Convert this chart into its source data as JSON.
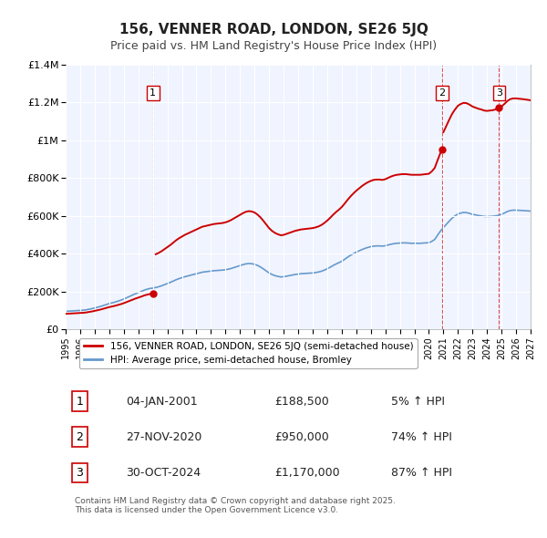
{
  "title": "156, VENNER ROAD, LONDON, SE26 5JQ",
  "subtitle": "Price paid vs. HM Land Registry's House Price Index (HPI)",
  "title_fontsize": 11,
  "subtitle_fontsize": 9,
  "background_color": "#ffffff",
  "plot_background_color": "#f0f4ff",
  "grid_color": "#ffffff",
  "xlim": [
    1995,
    2027
  ],
  "ylim": [
    0,
    1400000
  ],
  "yticks": [
    0,
    200000,
    400000,
    600000,
    800000,
    1000000,
    1200000,
    1400000
  ],
  "ytick_labels": [
    "£0",
    "£200K",
    "£400K",
    "£600K",
    "£800K",
    "£1M",
    "£1.2M",
    "£1.4M"
  ],
  "xticks": [
    1995,
    1996,
    1997,
    1998,
    1999,
    2000,
    2001,
    2002,
    2003,
    2004,
    2005,
    2006,
    2007,
    2008,
    2009,
    2010,
    2011,
    2012,
    2013,
    2014,
    2015,
    2016,
    2017,
    2018,
    2019,
    2020,
    2021,
    2022,
    2023,
    2024,
    2025,
    2026,
    2027
  ],
  "red_line_color": "#cc0000",
  "blue_line_color": "#6699cc",
  "marker_color": "#cc0000",
  "sale_dates": [
    2001.01,
    2020.9,
    2024.83
  ],
  "sale_prices": [
    188500,
    950000,
    1170000
  ],
  "sale_labels": [
    "1",
    "2",
    "3"
  ],
  "vline_dates": [
    2001.01,
    2020.9,
    2024.83
  ],
  "legend_label_red": "156, VENNER ROAD, LONDON, SE26 5JQ (semi-detached house)",
  "legend_label_blue": "HPI: Average price, semi-detached house, Bromley",
  "table_rows": [
    {
      "num": "1",
      "date": "04-JAN-2001",
      "price": "£188,500",
      "pct": "5% ↑ HPI"
    },
    {
      "num": "2",
      "date": "27-NOV-2020",
      "price": "£950,000",
      "pct": "74% ↑ HPI"
    },
    {
      "num": "3",
      "date": "30-OCT-2024",
      "price": "£1,170,000",
      "pct": "87% ↑ HPI"
    }
  ],
  "footnote": "Contains HM Land Registry data © Crown copyright and database right 2025.\nThis data is licensed under the Open Government Licence v3.0.",
  "hpi_years": [
    1995.0,
    1995.1,
    1995.2,
    1995.3,
    1995.4,
    1995.5,
    1995.6,
    1995.7,
    1995.8,
    1995.9,
    1996.0,
    1996.2,
    1996.4,
    1996.6,
    1996.8,
    1997.0,
    1997.2,
    1997.4,
    1997.6,
    1997.8,
    1998.0,
    1998.2,
    1998.4,
    1998.6,
    1998.8,
    1999.0,
    1999.2,
    1999.4,
    1999.6,
    1999.8,
    2000.0,
    2000.2,
    2000.4,
    2000.6,
    2000.8,
    2001.0,
    2001.2,
    2001.4,
    2001.6,
    2001.8,
    2002.0,
    2002.2,
    2002.4,
    2002.6,
    2002.8,
    2003.0,
    2003.2,
    2003.4,
    2003.6,
    2003.8,
    2004.0,
    2004.2,
    2004.4,
    2004.6,
    2004.8,
    2005.0,
    2005.2,
    2005.4,
    2005.6,
    2005.8,
    2006.0,
    2006.2,
    2006.4,
    2006.6,
    2006.8,
    2007.0,
    2007.2,
    2007.4,
    2007.6,
    2007.8,
    2008.0,
    2008.2,
    2008.4,
    2008.6,
    2008.8,
    2009.0,
    2009.2,
    2009.4,
    2009.6,
    2009.8,
    2010.0,
    2010.2,
    2010.4,
    2010.6,
    2010.8,
    2011.0,
    2011.2,
    2011.4,
    2011.6,
    2011.8,
    2012.0,
    2012.2,
    2012.4,
    2012.6,
    2012.8,
    2013.0,
    2013.2,
    2013.4,
    2013.6,
    2013.8,
    2014.0,
    2014.2,
    2014.4,
    2014.6,
    2014.8,
    2015.0,
    2015.2,
    2015.4,
    2015.6,
    2015.8,
    2016.0,
    2016.2,
    2016.4,
    2016.6,
    2016.8,
    2017.0,
    2017.2,
    2017.4,
    2017.6,
    2017.8,
    2018.0,
    2018.2,
    2018.4,
    2018.6,
    2018.8,
    2019.0,
    2019.2,
    2019.4,
    2019.6,
    2019.8,
    2020.0,
    2020.2,
    2020.4,
    2020.6,
    2020.8,
    2021.0,
    2021.2,
    2021.4,
    2021.6,
    2021.8,
    2022.0,
    2022.2,
    2022.4,
    2022.6,
    2022.8,
    2023.0,
    2023.2,
    2023.4,
    2023.6,
    2023.8,
    2024.0,
    2024.2,
    2024.4,
    2024.6,
    2024.8,
    2025.0,
    2025.2,
    2025.4,
    2025.6,
    2025.8,
    2026.0,
    2026.5,
    2027.0
  ],
  "hpi_values": [
    95000,
    95500,
    96000,
    96500,
    97000,
    97500,
    98000,
    98500,
    99000,
    99500,
    100000,
    101000,
    103000,
    106000,
    109000,
    113000,
    117000,
    121000,
    126000,
    131000,
    136000,
    140000,
    144000,
    149000,
    154000,
    160000,
    167000,
    174000,
    181000,
    188000,
    194000,
    200000,
    207000,
    212000,
    216000,
    218000,
    221000,
    225000,
    230000,
    236000,
    242000,
    248000,
    255000,
    262000,
    268000,
    273000,
    278000,
    282000,
    286000,
    290000,
    294000,
    298000,
    302000,
    304000,
    306000,
    308000,
    310000,
    311000,
    312000,
    313000,
    315000,
    318000,
    322000,
    327000,
    332000,
    337000,
    342000,
    346000,
    348000,
    347000,
    344000,
    338000,
    330000,
    320000,
    309000,
    298000,
    290000,
    284000,
    280000,
    277000,
    278000,
    281000,
    284000,
    287000,
    290000,
    292000,
    294000,
    295000,
    296000,
    297000,
    298000,
    300000,
    303000,
    307000,
    313000,
    320000,
    328000,
    337000,
    345000,
    352000,
    360000,
    370000,
    381000,
    391000,
    400000,
    408000,
    415000,
    422000,
    428000,
    433000,
    437000,
    440000,
    441000,
    441000,
    440000,
    442000,
    446000,
    450000,
    453000,
    455000,
    456000,
    457000,
    457000,
    456000,
    455000,
    455000,
    455000,
    455000,
    456000,
    457000,
    458000,
    465000,
    475000,
    498000,
    520000,
    538000,
    555000,
    572000,
    588000,
    600000,
    610000,
    615000,
    618000,
    617000,
    613000,
    608000,
    605000,
    602000,
    600000,
    597000,
    596000,
    597000,
    598000,
    600000,
    603000,
    608000,
    615000,
    623000,
    628000,
    630000,
    630000,
    628000,
    625000
  ]
}
